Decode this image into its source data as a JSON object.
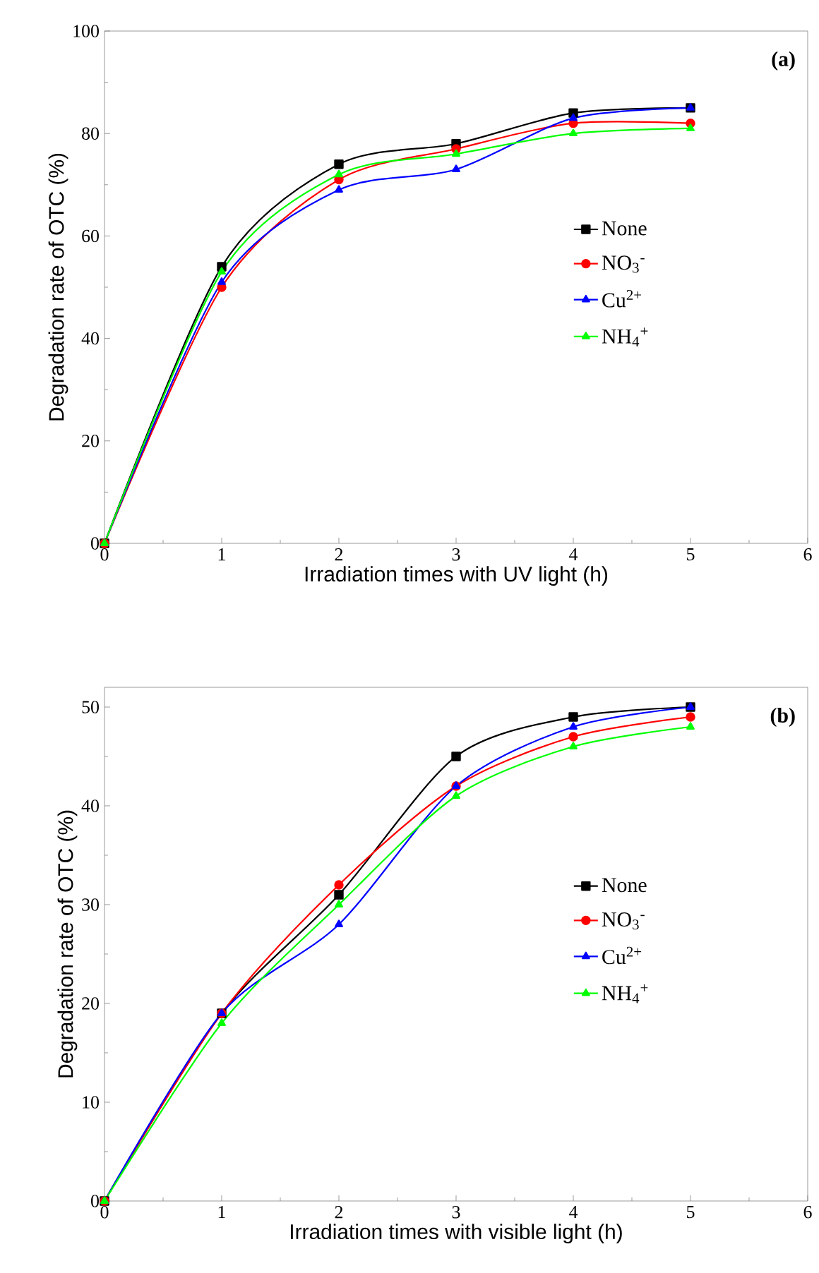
{
  "chart_data": [
    {
      "type": "line",
      "xlabel": "Irradiation times with  UV light (h)",
      "ylabel": "Degradation rate of OTC (%)",
      "annotations": [
        "(a)"
      ],
      "x": [
        0,
        1,
        2,
        3,
        4,
        5
      ],
      "xlim": [
        0,
        6
      ],
      "xticks": [
        0,
        1,
        2,
        3,
        4,
        5,
        6
      ],
      "ylim": [
        0,
        100
      ],
      "yticks": [
        0,
        20,
        40,
        60,
        80,
        100
      ],
      "legend": "right",
      "grid": false,
      "line_style": "solid",
      "series": [
        {
          "name": "None",
          "color": "#000000",
          "marker": "square",
          "values": [
            0,
            54,
            74,
            78,
            84,
            85
          ]
        },
        {
          "name": "NO$_{3}$$^{-}$",
          "color": "#ff0000",
          "marker": "circle",
          "values": [
            0,
            50,
            71,
            77,
            82,
            82
          ]
        },
        {
          "name": "Cu$^{2+}$",
          "color": "#0000ff",
          "marker": "triangle",
          "values": [
            0,
            51,
            69,
            73,
            83,
            85
          ]
        },
        {
          "name": "NH$_{4}$$^{+}$",
          "color": "#00ff00",
          "marker": "triangle-down",
          "values": [
            0,
            53,
            72,
            76,
            80,
            81
          ]
        }
      ]
    },
    {
      "type": "line",
      "xlabel": "Irradiation times with visible  light (h)",
      "ylabel": "Degradation rate of OTC (%)",
      "annotations": [
        "(b)"
      ],
      "x": [
        0,
        1,
        2,
        3,
        4,
        5
      ],
      "xlim": [
        0,
        6
      ],
      "xticks": [
        0,
        1,
        2,
        3,
        4,
        5,
        6
      ],
      "ylim": [
        0,
        52
      ],
      "yticks": [
        0,
        10,
        20,
        30,
        40,
        50
      ],
      "legend": "right",
      "grid": false,
      "line_style": "solid",
      "series": [
        {
          "name": "None",
          "color": "#000000",
          "marker": "square",
          "values": [
            0,
            19,
            31,
            45,
            49,
            50
          ]
        },
        {
          "name": "NO$_{3}$$^{-}$",
          "color": "#ff0000",
          "marker": "circle",
          "values": [
            0,
            19,
            32,
            42,
            47,
            49
          ]
        },
        {
          "name": "Cu$^{2+}$",
          "color": "#0000ff",
          "marker": "triangle",
          "values": [
            0,
            19,
            28,
            42,
            48,
            50
          ]
        },
        {
          "name": "NH$_{4}$$^{+}$",
          "color": "#00ff00",
          "marker": "triangle-down",
          "values": [
            0,
            18,
            30,
            41,
            46,
            48
          ]
        }
      ]
    }
  ]
}
